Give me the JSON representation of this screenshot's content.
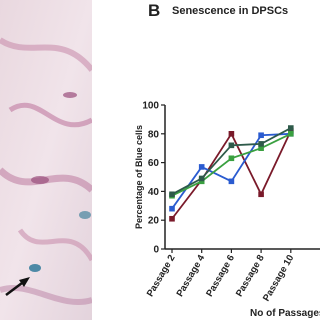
{
  "chart_data": {
    "type": "line",
    "panel_label": "B",
    "title": "Senescence in DPSCs",
    "y_label": "Percentage of Blue cells",
    "x_label": "No of Passages",
    "categories": [
      "Passage 2",
      "Passage 4",
      "Passage 6",
      "Passage 8",
      "Passage 10"
    ],
    "series": [
      {
        "color": "#7a1a2a",
        "values": [
          21,
          48,
          80,
          38,
          82
        ]
      },
      {
        "color": "#2a5bd0",
        "values": [
          28,
          57,
          47,
          79,
          80
        ]
      },
      {
        "color": "#3aa040",
        "values": [
          37,
          47,
          63,
          70,
          80
        ]
      },
      {
        "color": "#2e5a4a",
        "values": [
          38,
          49,
          72,
          73,
          84
        ]
      }
    ],
    "ylim": [
      0,
      100
    ],
    "yticks": [
      0,
      20,
      40,
      60,
      80,
      100
    ]
  }
}
